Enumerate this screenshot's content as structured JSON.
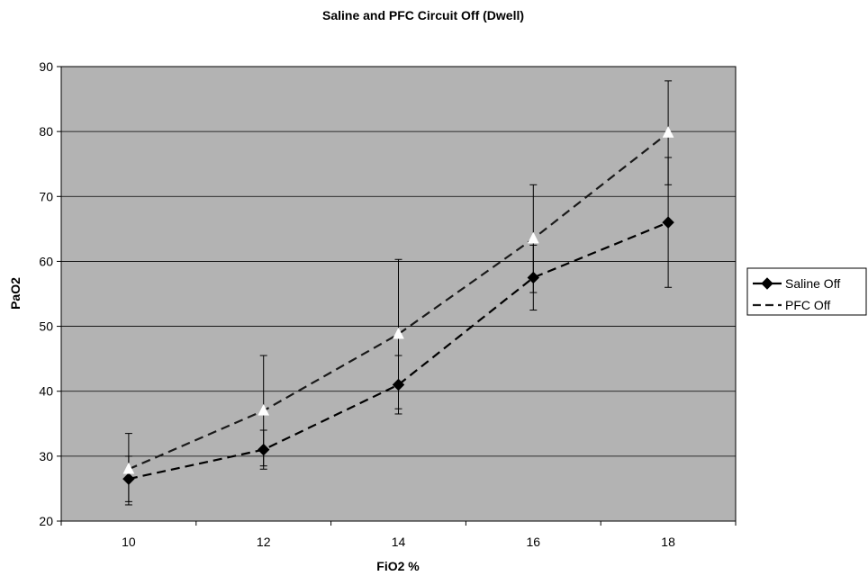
{
  "chart_data": {
    "type": "line",
    "title": "Saline and PFC Circuit Off (Dwell)",
    "xlabel": "FiO2 %",
    "ylabel": "PaO2",
    "x": [
      10,
      12,
      14,
      16,
      18
    ],
    "xlim": [
      9,
      19
    ],
    "ylim": [
      20,
      90
    ],
    "x_ticks": [
      10,
      12,
      14,
      16,
      18
    ],
    "y_ticks": [
      20,
      30,
      40,
      50,
      60,
      70,
      80,
      90
    ],
    "grid": "horizontal",
    "legend_position": "right",
    "plot_background": "#b3b3b3",
    "series": [
      {
        "name": "Saline Off",
        "marker": "diamond",
        "line_style": "dashed",
        "color": "#000000",
        "marker_color": "#000000",
        "values": [
          26.5,
          31.0,
          41.0,
          57.5,
          66.0
        ],
        "error": [
          3.5,
          3.0,
          4.5,
          5.0,
          10.0
        ]
      },
      {
        "name": "PFC Off",
        "marker": "triangle",
        "line_style": "dashed",
        "color": "#1a1a1a",
        "marker_color": "#ffffff",
        "values": [
          28.0,
          37.0,
          48.8,
          63.5,
          79.8
        ],
        "error": [
          5.5,
          8.5,
          11.5,
          8.3,
          8.0
        ]
      }
    ]
  }
}
